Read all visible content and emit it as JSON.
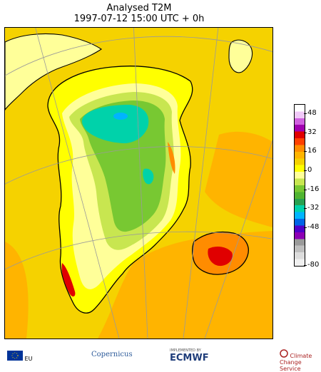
{
  "header": {
    "title": "Analysed T2M",
    "subtitle": "1997-07-12 15:00 UTC + 0h"
  },
  "colorbar": {
    "ticks": [
      "48",
      "32",
      "16",
      "0",
      "-16",
      "-32",
      "-48",
      "-80"
    ],
    "tick_values": [
      48,
      32,
      16,
      0,
      -16,
      -32,
      -48,
      -80
    ],
    "colors": [
      "#ffffff",
      "#f0c8f8",
      "#d060e0",
      "#a000b0",
      "#e00000",
      "#ff4000",
      "#ff8c00",
      "#ffb400",
      "#f5d200",
      "#ffff00",
      "#ffff99",
      "#c8e650",
      "#78c832",
      "#50b432",
      "#28a050",
      "#00d2aa",
      "#00b4ff",
      "#0064e6",
      "#5000c8",
      "#8c00b4",
      "#9a9a9a",
      "#bebebe",
      "#dcdcdc",
      "#f0f0f0"
    ]
  },
  "map": {
    "palette": {
      "sea": "#f5d200",
      "warm_sea": "#ffb400",
      "coast": "#ffff00",
      "pale": "#ffff99",
      "lightgreen": "#c8e650",
      "green": "#78c832",
      "cyan": "#00d2aa",
      "hot": "#e00000",
      "outline": "#000000",
      "grid": "#9a9a9a"
    }
  },
  "footer": {
    "eu": "EU",
    "copernicus": "Copernicus",
    "ecmwf_small": "IMPLEMENTED BY",
    "ecmwf": "ECMWF",
    "c3s": "Climate Change Service"
  }
}
